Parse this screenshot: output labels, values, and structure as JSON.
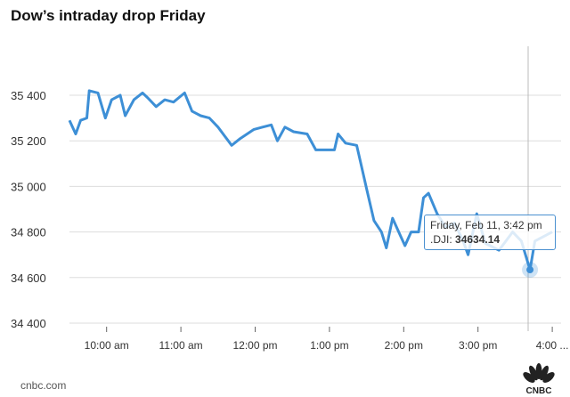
{
  "chart_data": {
    "type": "line",
    "title": "Dow’s intraday drop Friday",
    "xlabel": "",
    "ylabel": "",
    "xlim": [
      "09:30",
      "16:07"
    ],
    "ylim": [
      34400,
      35500
    ],
    "yticks": [
      34400,
      34600,
      34800,
      35000,
      35200,
      35400
    ],
    "ytick_labels": [
      "34 400",
      "34 600",
      "34 800",
      "35 000",
      "35 200",
      "35 400"
    ],
    "xticks": [
      "10:00",
      "11:00",
      "12:00",
      "13:00",
      "14:00",
      "15:00",
      "16:00"
    ],
    "xtick_labels": [
      "10:00 am",
      "11:00 am",
      "12:00 pm",
      "1:00 pm",
      "2:00 pm",
      "3:00 pm",
      "4:00 ..."
    ],
    "grid": "horizontal",
    "color": "#3d8fd6",
    "series": [
      {
        "x": [
          "09:30",
          "09:35",
          "09:39",
          "09:44",
          "09:46",
          "09:53",
          "09:59",
          "10:04",
          "10:11",
          "10:15",
          "10:22",
          "10:29",
          "10:33",
          "10:40",
          "10:47",
          "10:54",
          "11:03",
          "11:09",
          "11:16",
          "11:23",
          "11:30",
          "11:41",
          "11:48",
          "11:59",
          "12:06",
          "12:13",
          "12:18",
          "12:24",
          "12:31",
          "12:42",
          "12:49",
          "12:57",
          "13:04",
          "13:07",
          "13:13",
          "13:22",
          "13:25",
          "13:30",
          "13:36",
          "13:42",
          "13:46",
          "13:51",
          "13:56",
          "14:01",
          "14:06",
          "14:12",
          "14:16",
          "14:20",
          "14:27",
          "14:34",
          "14:41",
          "14:48",
          "14:52",
          "14:59",
          "15:06",
          "15:17",
          "15:28",
          "15:35",
          "15:42",
          "15:46",
          "15:53",
          "16:00"
        ],
        "values": [
          35290,
          35230,
          35290,
          35300,
          35420,
          35410,
          35300,
          35380,
          35400,
          35310,
          35380,
          35410,
          35390,
          35350,
          35380,
          35370,
          35410,
          35330,
          35310,
          35300,
          35260,
          35180,
          35210,
          35250,
          35260,
          35270,
          35200,
          35260,
          35240,
          35230,
          35160,
          35160,
          35160,
          35230,
          35190,
          35180,
          35110,
          34990,
          34850,
          34800,
          34730,
          34860,
          34800,
          34740,
          34800,
          34800,
          34950,
          34970,
          34880,
          34820,
          34840,
          34760,
          34700,
          34880,
          34750,
          34720,
          34800,
          34760,
          34634.14,
          34760,
          34780,
          34800
        ]
      }
    ],
    "tooltip": {
      "date": "Friday, Feb 11, 3:42 pm",
      "series_label": ".DJI:",
      "value": "34634.14",
      "x": "15:42"
    }
  },
  "footer": {
    "source": "cnbc.com",
    "logo": "CNBC"
  }
}
